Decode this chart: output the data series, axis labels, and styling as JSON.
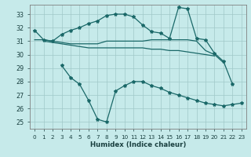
{
  "xlabel": "Humidex (Indice chaleur)",
  "bg_color": "#c6eaea",
  "grid_color": "#a0c8c8",
  "line_color": "#1a6868",
  "xlim": [
    -0.5,
    23.5
  ],
  "ylim": [
    24.5,
    33.7
  ],
  "yticks": [
    25,
    26,
    27,
    28,
    29,
    30,
    31,
    32,
    33
  ],
  "xticks": [
    0,
    1,
    2,
    3,
    4,
    5,
    6,
    7,
    8,
    9,
    10,
    11,
    12,
    13,
    14,
    15,
    16,
    17,
    18,
    19,
    20,
    21,
    22,
    23
  ],
  "line1_x": [
    0,
    1,
    2,
    3,
    4,
    5,
    6,
    7,
    8,
    9,
    10,
    11,
    12,
    13,
    14,
    15,
    16,
    17,
    18,
    19,
    20,
    21,
    22
  ],
  "line1_y": [
    31.8,
    31.1,
    31.0,
    31.5,
    31.8,
    32.0,
    32.3,
    32.5,
    32.9,
    33.0,
    33.0,
    32.8,
    32.2,
    31.7,
    31.6,
    31.2,
    33.5,
    33.4,
    31.2,
    31.1,
    30.1,
    29.5,
    27.8
  ],
  "line2_x": [
    0,
    1,
    2,
    3,
    4,
    5,
    6,
    7,
    8,
    9,
    10,
    11,
    12,
    13,
    14,
    15,
    16,
    17,
    18,
    19,
    20,
    21
  ],
  "line2_y": [
    31.1,
    31.1,
    31.0,
    30.9,
    30.8,
    30.8,
    30.8,
    30.8,
    31.0,
    31.0,
    31.0,
    31.0,
    31.0,
    31.1,
    31.1,
    31.1,
    31.1,
    31.1,
    31.0,
    30.3,
    30.0,
    29.4
  ],
  "line3_x": [
    1,
    2,
    3,
    4,
    5,
    6,
    7,
    8,
    9,
    10,
    11,
    12,
    13,
    14,
    15,
    16,
    17,
    18,
    19,
    20
  ],
  "line3_y": [
    31.0,
    30.9,
    30.8,
    30.7,
    30.6,
    30.5,
    30.5,
    30.5,
    30.5,
    30.5,
    30.5,
    30.5,
    30.4,
    30.4,
    30.3,
    30.3,
    30.2,
    30.1,
    30.0,
    29.9
  ],
  "line4_x": [
    3,
    4,
    5,
    6,
    7,
    8,
    9,
    10,
    11,
    12,
    13,
    14,
    15,
    16,
    17,
    18,
    19,
    20,
    21,
    22,
    23
  ],
  "line4_y": [
    29.2,
    28.3,
    27.8,
    26.6,
    25.2,
    25.0,
    27.3,
    27.7,
    28.0,
    28.0,
    27.7,
    27.5,
    27.2,
    27.0,
    26.8,
    26.6,
    26.4,
    26.3,
    26.2,
    26.3,
    26.4
  ]
}
